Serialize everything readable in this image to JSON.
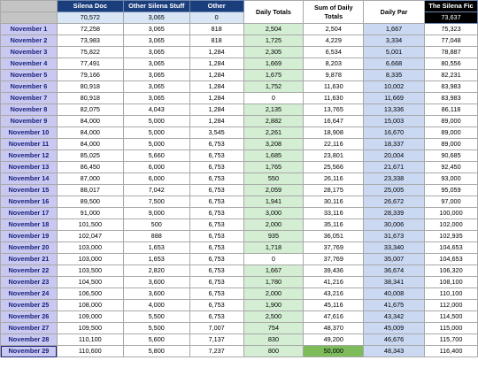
{
  "headers": {
    "date": "",
    "doc": "Silena Doc",
    "stuff": "Other Silena Stuff",
    "other": "Other",
    "daily": "Daily Totals",
    "sum": "Sum of Daily Totals",
    "par": "Daily Par",
    "fic": "The Silena Fic"
  },
  "baseline": {
    "doc": "70,572",
    "stuff": "3,065",
    "other": "0",
    "fic": "73,637"
  },
  "colors": {
    "header": "#1a3d7c",
    "date": "#c8c8f0",
    "daily": "#d4eed4",
    "par": "#cbd8f2",
    "milestone": "#7dbb5b"
  },
  "rows": [
    {
      "date": "November 1",
      "doc": "72,258",
      "stuff": "3,065",
      "other": "818",
      "daily": "2,504",
      "sum": "2,504",
      "par": "1,667",
      "fic": "75,323"
    },
    {
      "date": "November 2",
      "doc": "73,983",
      "stuff": "3,065",
      "other": "818",
      "daily": "1,725",
      "sum": "4,229",
      "par": "3,334",
      "fic": "77,048"
    },
    {
      "date": "November 3",
      "doc": "75,822",
      "stuff": "3,065",
      "other": "1,284",
      "daily": "2,305",
      "sum": "6,534",
      "par": "5,001",
      "fic": "78,887"
    },
    {
      "date": "November 4",
      "doc": "77,491",
      "stuff": "3,065",
      "other": "1,284",
      "daily": "1,669",
      "sum": "8,203",
      "par": "6,668",
      "fic": "80,556"
    },
    {
      "date": "November 5",
      "doc": "79,166",
      "stuff": "3,065",
      "other": "1,284",
      "daily": "1,675",
      "sum": "9,878",
      "par": "8,335",
      "fic": "82,231"
    },
    {
      "date": "November 6",
      "doc": "80,918",
      "stuff": "3,065",
      "other": "1,284",
      "daily": "1,752",
      "sum": "11,630",
      "par": "10,002",
      "fic": "83,983"
    },
    {
      "date": "November 7",
      "doc": "80,918",
      "stuff": "3,065",
      "other": "1,284",
      "daily": "0",
      "sum": "11,630",
      "par": "11,669",
      "fic": "83,983"
    },
    {
      "date": "November 8",
      "doc": "82,075",
      "stuff": "4,043",
      "other": "1,284",
      "daily": "2,135",
      "sum": "13,765",
      "par": "13,336",
      "fic": "86,118"
    },
    {
      "date": "November 9",
      "doc": "84,000",
      "stuff": "5,000",
      "other": "1,284",
      "daily": "2,882",
      "sum": "16,647",
      "par": "15,003",
      "fic": "89,000"
    },
    {
      "date": "November 10",
      "doc": "84,000",
      "stuff": "5,000",
      "other": "3,545",
      "daily": "2,261",
      "sum": "18,908",
      "par": "16,670",
      "fic": "89,000"
    },
    {
      "date": "November 11",
      "doc": "84,000",
      "stuff": "5,000",
      "other": "6,753",
      "daily": "3,208",
      "sum": "22,116",
      "par": "18,337",
      "fic": "89,000"
    },
    {
      "date": "November 12",
      "doc": "85,025",
      "stuff": "5,660",
      "other": "6,753",
      "daily": "1,685",
      "sum": "23,801",
      "par": "20,004",
      "fic": "90,685"
    },
    {
      "date": "November 13",
      "doc": "86,450",
      "stuff": "6,000",
      "other": "6,753",
      "daily": "1,765",
      "sum": "25,566",
      "par": "21,671",
      "fic": "92,450"
    },
    {
      "date": "November 14",
      "doc": "87,000",
      "stuff": "6,000",
      "other": "6,753",
      "daily": "550",
      "sum": "26,116",
      "par": "23,338",
      "fic": "93,000"
    },
    {
      "date": "November 15",
      "doc": "88,017",
      "stuff": "7,042",
      "other": "6,753",
      "daily": "2,059",
      "sum": "28,175",
      "par": "25,005",
      "fic": "95,059"
    },
    {
      "date": "November 16",
      "doc": "89,500",
      "stuff": "7,500",
      "other": "6,753",
      "daily": "1,941",
      "sum": "30,116",
      "par": "26,672",
      "fic": "97,000"
    },
    {
      "date": "November 17",
      "doc": "91,000",
      "stuff": "9,000",
      "other": "6,753",
      "daily": "3,000",
      "sum": "33,116",
      "par": "28,339",
      "fic": "100,000"
    },
    {
      "date": "November 18",
      "doc": "101,500",
      "stuff": "500",
      "other": "6,753",
      "daily": "2,000",
      "sum": "35,116",
      "par": "30,006",
      "fic": "102,000"
    },
    {
      "date": "November 19",
      "doc": "102,047",
      "stuff": "888",
      "other": "6,753",
      "daily": "935",
      "sum": "36,051",
      "par": "31,673",
      "fic": "102,935"
    },
    {
      "date": "November 20",
      "doc": "103,000",
      "stuff": "1,653",
      "other": "6,753",
      "daily": "1,718",
      "sum": "37,769",
      "par": "33,340",
      "fic": "104,653"
    },
    {
      "date": "November 21",
      "doc": "103,000",
      "stuff": "1,653",
      "other": "6,753",
      "daily": "0",
      "sum": "37,769",
      "par": "35,007",
      "fic": "104,653"
    },
    {
      "date": "November 22",
      "doc": "103,500",
      "stuff": "2,820",
      "other": "6,753",
      "daily": "1,667",
      "sum": "39,436",
      "par": "36,674",
      "fic": "106,320"
    },
    {
      "date": "November 23",
      "doc": "104,500",
      "stuff": "3,600",
      "other": "6,753",
      "daily": "1,780",
      "sum": "41,216",
      "par": "38,341",
      "fic": "108,100"
    },
    {
      "date": "November 24",
      "doc": "106,500",
      "stuff": "3,600",
      "other": "6,753",
      "daily": "2,000",
      "sum": "43,216",
      "par": "40,008",
      "fic": "110,100"
    },
    {
      "date": "November 25",
      "doc": "108,000",
      "stuff": "4,000",
      "other": "6,753",
      "daily": "1,900",
      "sum": "45,116",
      "par": "41,675",
      "fic": "112,000"
    },
    {
      "date": "November 26",
      "doc": "109,000",
      "stuff": "5,500",
      "other": "6,753",
      "daily": "2,500",
      "sum": "47,616",
      "par": "43,342",
      "fic": "114,500"
    },
    {
      "date": "November 27",
      "doc": "109,500",
      "stuff": "5,500",
      "other": "7,007",
      "daily": "754",
      "sum": "48,370",
      "par": "45,009",
      "fic": "115,000"
    },
    {
      "date": "November 28",
      "doc": "110,100",
      "stuff": "5,600",
      "other": "7,137",
      "daily": "830",
      "sum": "49,200",
      "par": "46,676",
      "fic": "115,700"
    },
    {
      "date": "November 29",
      "doc": "110,600",
      "stuff": "5,800",
      "other": "7,237",
      "daily": "800",
      "sum": "50,000",
      "par": "48,343",
      "fic": "116,400"
    }
  ]
}
